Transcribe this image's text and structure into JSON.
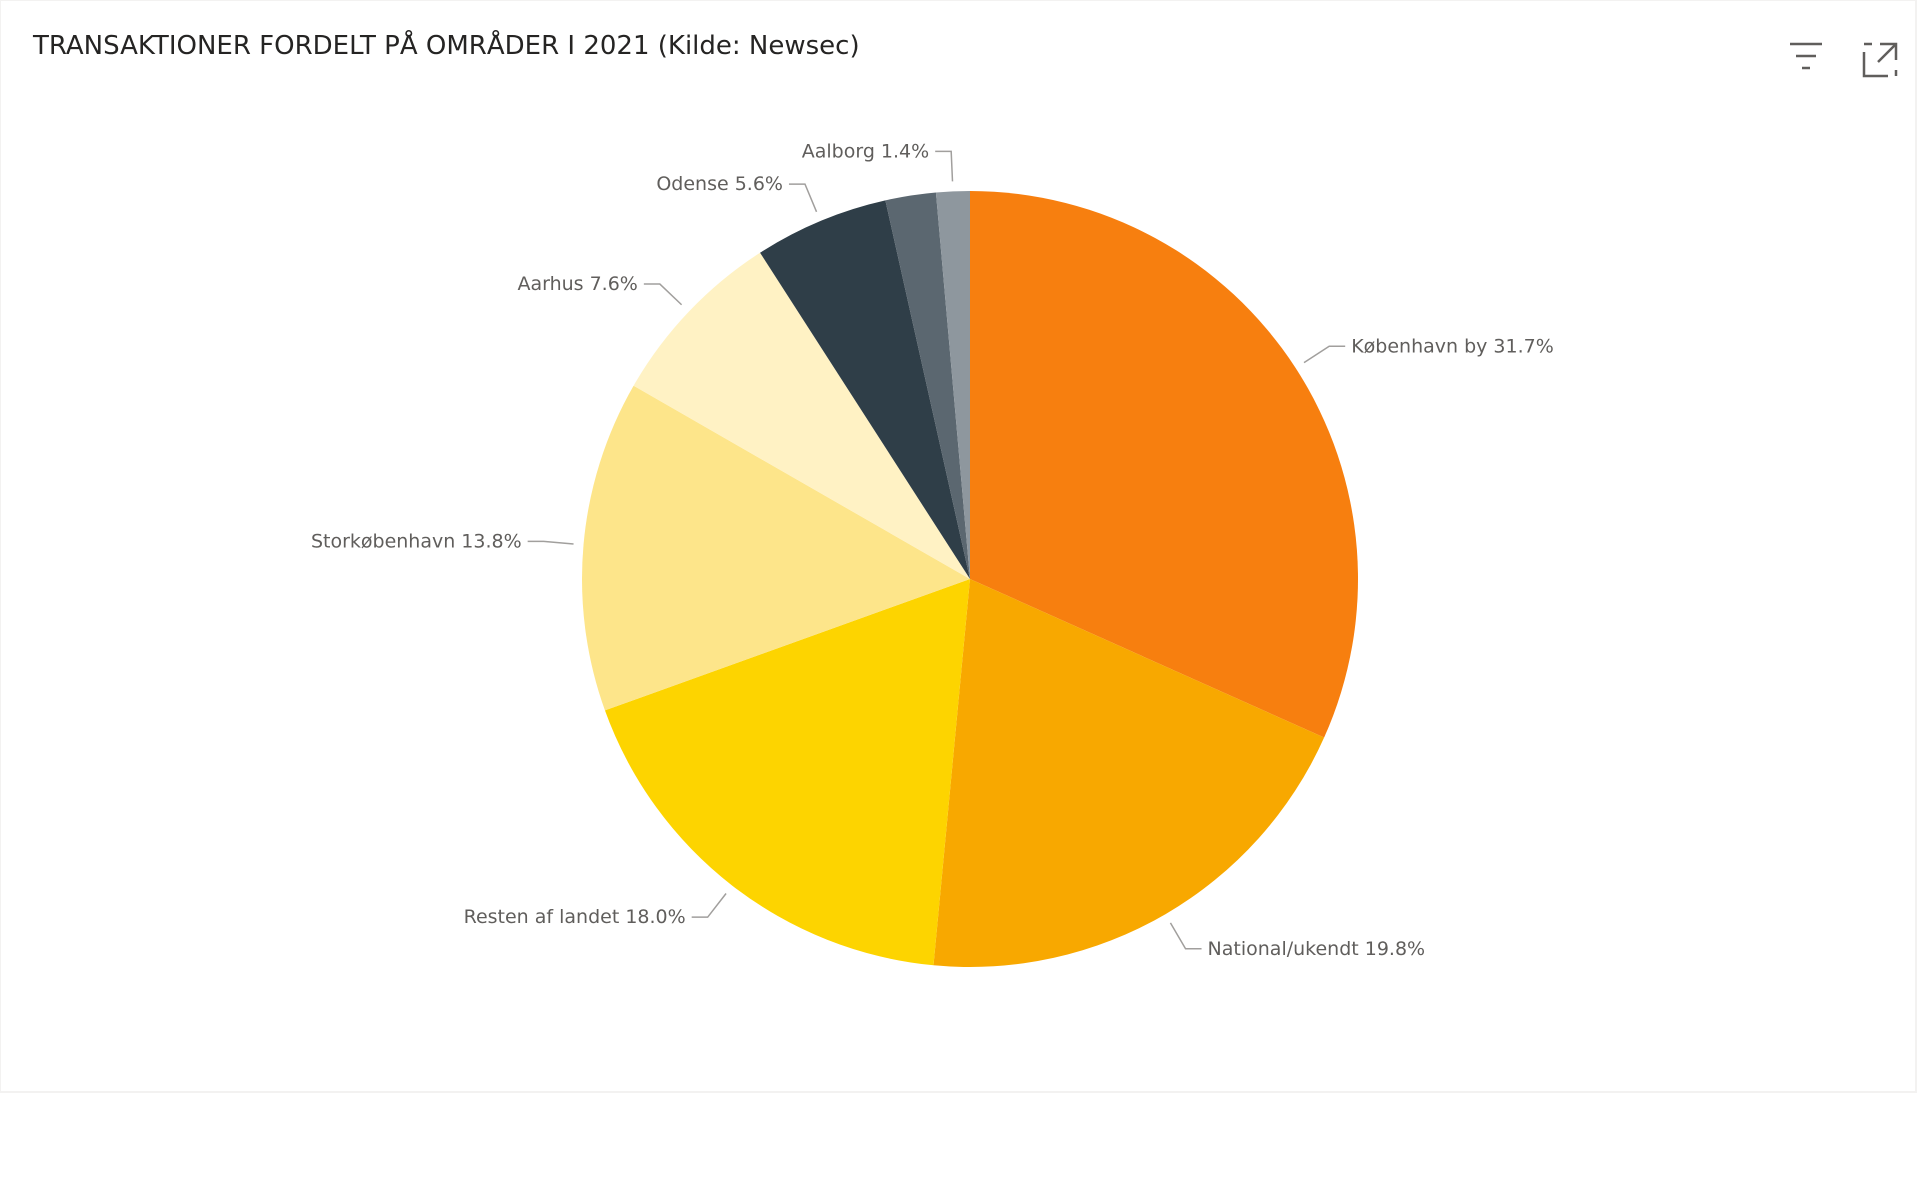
{
  "chart_data": {
    "type": "pie",
    "title": "TRANSAKTIONER FORDELT PÅ OMRÅDER I 2021 (Kilde: Newsec)",
    "categories": [
      "København by",
      "National/ukendt",
      "Resten af landet",
      "Storkøbenhavn",
      "Aarhus",
      "Odense",
      null,
      "Aalborg"
    ],
    "values": [
      31.7,
      19.8,
      18.0,
      13.8,
      7.6,
      5.6,
      2.1,
      1.4
    ],
    "value_labels": [
      "31.7%",
      "19.8%",
      "18.0%",
      "13.8%",
      "7.6%",
      "5.6%",
      null,
      "1.4%"
    ],
    "colors": [
      "#f77f0f",
      "#f8a800",
      "#fdd400",
      "#fde58a",
      "#fff2c4",
      "#2f3e48",
      "#5b6770",
      "#8e979e"
    ]
  }
}
